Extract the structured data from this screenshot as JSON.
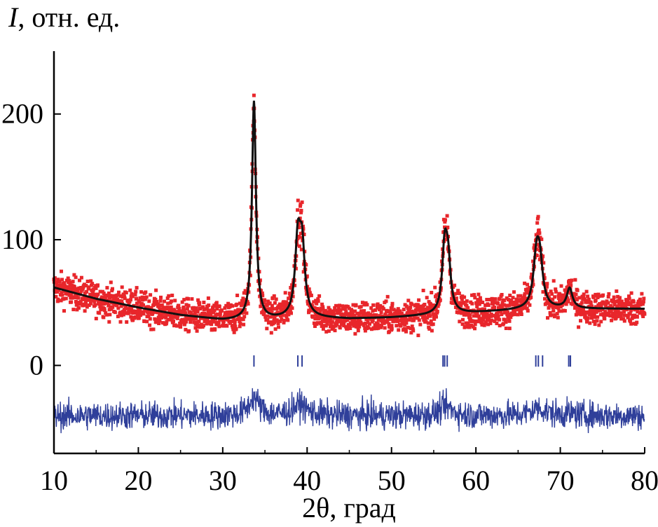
{
  "chart_data": {
    "type": "scatter",
    "ylabel_var": "I",
    "ylabel_rest": ", отн. ед.",
    "xlabel": "2θ, град",
    "xlim": [
      10,
      80
    ],
    "ylim": [
      -70,
      250
    ],
    "x_ticks": [
      10,
      20,
      30,
      40,
      50,
      60,
      70,
      80
    ],
    "y_ticks": [
      0,
      100,
      200
    ],
    "grid": false,
    "legend": "none",
    "colors": {
      "observed": "#e8262b",
      "calculated": "#111111",
      "difference": "#2f3f9a",
      "bragg_marks": "#2f3f9a"
    },
    "background": {
      "x": [
        10,
        15,
        20,
        25,
        30,
        35,
        40,
        45,
        50,
        55,
        60,
        65,
        70,
        75,
        80
      ],
      "y": [
        62,
        53,
        46,
        40,
        36,
        36,
        38,
        37,
        38,
        40,
        42,
        44,
        45,
        45,
        45
      ]
    },
    "peaks": [
      {
        "x": 33.7,
        "height": 174,
        "width": 0.28
      },
      {
        "x": 38.9,
        "height": 58,
        "width": 0.38
      },
      {
        "x": 39.4,
        "height": 52,
        "width": 0.38
      },
      {
        "x": 56.3,
        "height": 50,
        "width": 0.35
      },
      {
        "x": 56.7,
        "height": 38,
        "width": 0.35
      },
      {
        "x": 67.2,
        "height": 42,
        "width": 0.45
      },
      {
        "x": 67.6,
        "height": 28,
        "width": 0.4
      },
      {
        "x": 71.1,
        "height": 16,
        "width": 0.4
      }
    ],
    "observed_noise": 9,
    "difference_offset": -40,
    "difference_noise": 8,
    "bragg_positions": [
      33.7,
      38.9,
      39.4,
      56.1,
      56.3,
      56.6,
      67.1,
      67.4,
      67.9,
      71.0,
      71.2
    ],
    "bragg_y_range": [
      -1,
      8
    ]
  }
}
